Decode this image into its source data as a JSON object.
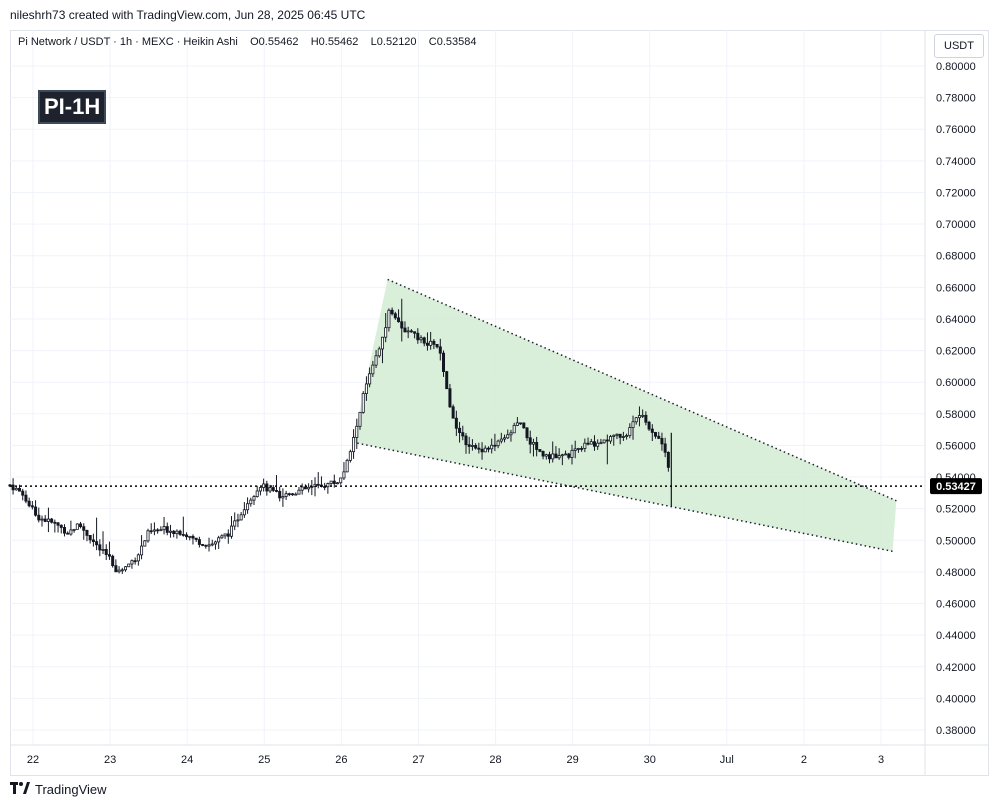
{
  "attribution": "nileshrh73 created with TradingView.com, Jun 28, 2025 06:45 UTC",
  "legend": {
    "symbol": "Pi Network / USDT · 1h · MEXC · Heikin Ashi",
    "open_label": "O",
    "open": "0.55462",
    "high_label": "H",
    "high": "0.55462",
    "low_label": "L",
    "low": "0.52120",
    "close_label": "C",
    "close": "0.53584"
  },
  "badge": "PI-1H",
  "currency": "USDT",
  "last_price_label": "0.53427",
  "brand": {
    "logo_icon": "tradingview-logo-icon",
    "name": "TradingView"
  },
  "colors": {
    "up": "#131722",
    "down": "#131722",
    "pattern_fill": "#d4ecd4",
    "pattern_line": "#1e222d",
    "price_line": "#000000",
    "price_label_bg": "#000000",
    "grid": "#f0f3fa"
  },
  "chart_data": {
    "type": "candlestick",
    "style": "Heikin Ashi",
    "interval": "1h",
    "ylim": [
      0.37,
      0.81
    ],
    "yticks": [
      "0.38000",
      "0.40000",
      "0.42000",
      "0.44000",
      "0.46000",
      "0.48000",
      "0.50000",
      "0.52000",
      "0.54000",
      "0.56000",
      "0.58000",
      "0.60000",
      "0.62000",
      "0.64000",
      "0.66000",
      "0.68000",
      "0.70000",
      "0.72000",
      "0.74000",
      "0.76000",
      "0.78000",
      "0.80000"
    ],
    "xticks": [
      "22",
      "23",
      "24",
      "25",
      "26",
      "27",
      "28",
      "29",
      "30",
      "Jul",
      "2",
      "3"
    ],
    "x_unit": "day index (0 = Jun 22)",
    "xlim": [
      -0.3,
      11.6
    ],
    "last_price": 0.53427,
    "price_path": [
      [
        -0.3,
        0.535
      ],
      [
        -0.15,
        0.53
      ],
      [
        0.05,
        0.515
      ],
      [
        0.3,
        0.51
      ],
      [
        0.45,
        0.505
      ],
      [
        0.6,
        0.51
      ],
      [
        0.85,
        0.495
      ],
      [
        1.0,
        0.488
      ],
      [
        1.1,
        0.48
      ],
      [
        1.2,
        0.483
      ],
      [
        1.35,
        0.49
      ],
      [
        1.5,
        0.505
      ],
      [
        1.7,
        0.507
      ],
      [
        1.95,
        0.505
      ],
      [
        2.1,
        0.5
      ],
      [
        2.3,
        0.497
      ],
      [
        2.55,
        0.505
      ],
      [
        2.75,
        0.522
      ],
      [
        2.95,
        0.535
      ],
      [
        3.2,
        0.528
      ],
      [
        3.5,
        0.532
      ],
      [
        3.75,
        0.535
      ],
      [
        3.95,
        0.537
      ],
      [
        4.05,
        0.545
      ],
      [
        4.15,
        0.562
      ],
      [
        4.3,
        0.595
      ],
      [
        4.45,
        0.615
      ],
      [
        4.55,
        0.63
      ],
      [
        4.62,
        0.648
      ],
      [
        4.7,
        0.64
      ],
      [
        4.85,
        0.632
      ],
      [
        5.0,
        0.628
      ],
      [
        5.1,
        0.623
      ],
      [
        5.2,
        0.625
      ],
      [
        5.28,
        0.618
      ],
      [
        5.4,
        0.585
      ],
      [
        5.55,
        0.565
      ],
      [
        5.75,
        0.557
      ],
      [
        6.0,
        0.56
      ],
      [
        6.15,
        0.565
      ],
      [
        6.3,
        0.575
      ],
      [
        6.45,
        0.562
      ],
      [
        6.6,
        0.555
      ],
      [
        6.8,
        0.552
      ],
      [
        7.0,
        0.555
      ],
      [
        7.15,
        0.56
      ],
      [
        7.35,
        0.562
      ],
      [
        7.5,
        0.565
      ],
      [
        7.7,
        0.567
      ],
      [
        7.85,
        0.58
      ],
      [
        7.95,
        0.575
      ],
      [
        8.05,
        0.568
      ],
      [
        8.15,
        0.562
      ],
      [
        8.22,
        0.555
      ],
      [
        8.28,
        0.535
      ]
    ],
    "pattern": {
      "type": "falling wedge",
      "upper_line": [
        [
          4.6,
          0.665
        ],
        [
          11.2,
          0.525
        ]
      ],
      "lower_line": [
        [
          4.15,
          0.562
        ],
        [
          11.15,
          0.493
        ]
      ]
    }
  }
}
